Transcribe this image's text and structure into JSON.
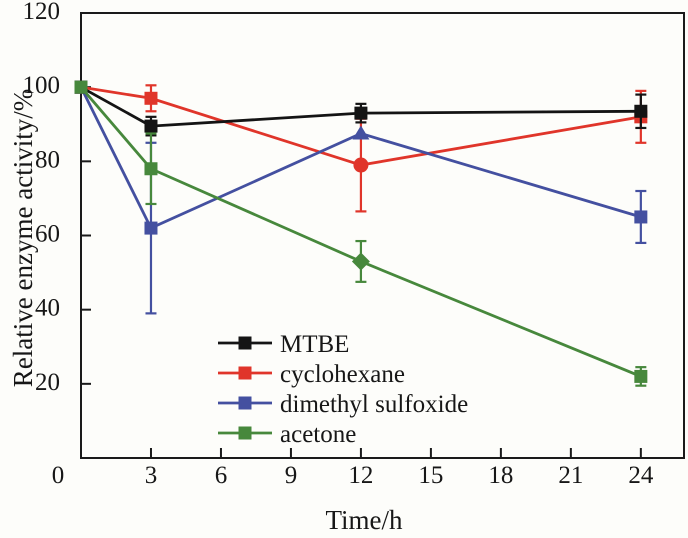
{
  "chart_data": {
    "type": "line",
    "title": "",
    "xlabel": "Time/h",
    "ylabel": "Relative enzyme activity/%",
    "xlim": [
      0,
      25.85
    ],
    "ylim": [
      0,
      120
    ],
    "xticks": [
      0,
      3,
      6,
      9,
      12,
      15,
      18,
      21,
      24
    ],
    "yticks": [
      0,
      20,
      40,
      60,
      80,
      100,
      120
    ],
    "grid": false,
    "legend_position": "inside lower-left",
    "x": [
      0,
      3,
      12,
      24
    ],
    "series": [
      {
        "name": "MTBE",
        "color": "#141414",
        "values": [
          100,
          89.5,
          93,
          93.5
        ],
        "errors": [
          0,
          2.5,
          2.5,
          4.5
        ],
        "markers": [
          "square",
          "square",
          "square",
          "square"
        ]
      },
      {
        "name": "cyclohexane",
        "color": "#e0352a",
        "values": [
          100,
          97,
          79,
          92
        ],
        "errors": [
          0,
          3.5,
          12.5,
          7
        ],
        "markers": [
          "square",
          "square",
          "circle",
          "square"
        ]
      },
      {
        "name": "dimethyl sulfoxide",
        "color": "#4450a0",
        "values": [
          100,
          62,
          87.5,
          65
        ],
        "errors": [
          0,
          23,
          0,
          7
        ],
        "markers": [
          "square",
          "square",
          "triangle",
          "square"
        ]
      },
      {
        "name": "acetone",
        "color": "#47883c",
        "values": [
          100,
          78,
          53,
          22
        ],
        "errors": [
          0,
          9.5,
          5.5,
          2.5
        ],
        "markers": [
          "square",
          "square",
          "diamond",
          "square"
        ]
      }
    ],
    "draw_order": [
      1,
      2,
      0,
      3
    ],
    "colors": {
      "axis": "#1a1a1a",
      "background": "#fdfdfa"
    }
  }
}
